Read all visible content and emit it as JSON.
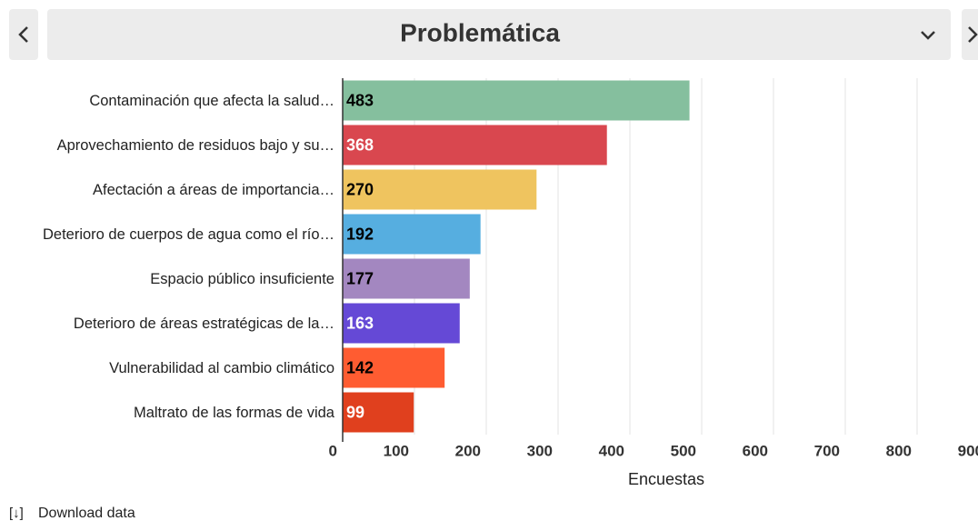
{
  "header": {
    "title": "Problemática"
  },
  "chart_data": {
    "type": "hbar",
    "categories": [
      "Contaminación que afecta la salud…",
      "Aprovechamiento de residuos bajo y su…",
      "Afectación a áreas de importancia…",
      "Deterioro de cuerpos de agua como el río…",
      "Espacio público insuficiente",
      "Deterioro de áreas estratégicas de la…",
      "Vulnerabilidad al cambio climático",
      "Maltrato de las formas de vida"
    ],
    "values": [
      483,
      368,
      270,
      192,
      177,
      163,
      142,
      99
    ],
    "colors": [
      "#85bf9e",
      "#d9474f",
      "#efc45f",
      "#56aee0",
      "#a387c0",
      "#6549d6",
      "#ff5c31",
      "#e0401e"
    ],
    "label_colors": [
      "#000000",
      "#ffffff",
      "#000000",
      "#000000",
      "#000000",
      "#ffffff",
      "#000000",
      "#ffffff"
    ],
    "xlim": [
      0,
      900
    ],
    "xticks": [
      0,
      100,
      200,
      300,
      400,
      500,
      600,
      700,
      800,
      900
    ],
    "xlabel": "Encuestas",
    "grid": true
  },
  "footer": {
    "download": "Download data"
  }
}
